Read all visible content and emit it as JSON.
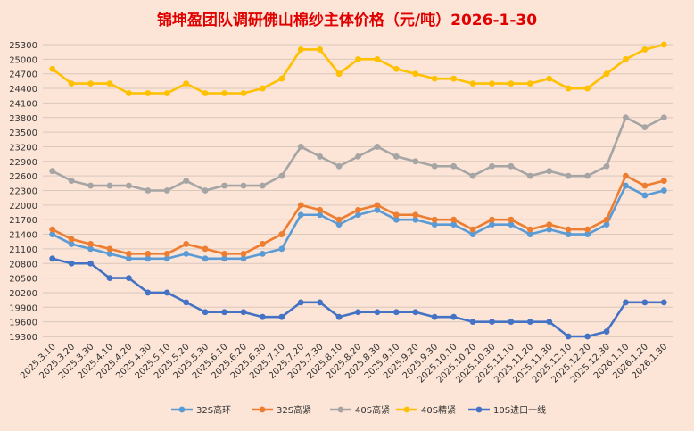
{
  "chart_data": {
    "type": "line",
    "title": "锦坤盈团队调研佛山棉纱主体价格（元/吨）2026-1-30",
    "xlabel": "",
    "ylabel": "",
    "ylim": [
      19300,
      25300
    ],
    "yticks": [
      19300,
      19600,
      19900,
      20200,
      20500,
      20800,
      21100,
      21400,
      21700,
      22000,
      22300,
      22600,
      22900,
      23200,
      23500,
      23800,
      24100,
      24400,
      24700,
      25000,
      25300
    ],
    "grid": true,
    "legend": "bottom",
    "categories": [
      "2025.3.10",
      "2025.3.20",
      "2025.3.30",
      "2025.4.10",
      "2025.4.20",
      "2025.4.30",
      "2025.5.10",
      "2025.5.20",
      "2025.5.30",
      "2025.6.10",
      "2025.6.20",
      "2025.6.30",
      "2025.7.10",
      "2025.7.20",
      "2025.7.30",
      "2025.8.10",
      "2025.8.20",
      "2025.8.30",
      "2025.9.10",
      "2025.9.20",
      "2025.9.30",
      "2025.10.10",
      "2025.10.20",
      "2025.10.30",
      "2025.11.10",
      "2025.11.20",
      "2025.11.30",
      "2025.12.10",
      "2025.12.20",
      "2025.12.30",
      "2026.1.10",
      "2026.1.20",
      "2026.1.30"
    ],
    "series": [
      {
        "name": "32S高环",
        "color": "#5b9bd5",
        "values": [
          21400,
          21200,
          21100,
          21000,
          20900,
          20900,
          20900,
          21000,
          20900,
          20900,
          20900,
          21000,
          21100,
          21800,
          21800,
          21600,
          21800,
          21900,
          21700,
          21700,
          21600,
          21600,
          21400,
          21600,
          21600,
          21400,
          21500,
          21400,
          21400,
          21600,
          22400,
          22200,
          22300
        ]
      },
      {
        "name": "32S高紧",
        "color": "#ed7d31",
        "values": [
          21500,
          21300,
          21200,
          21100,
          21000,
          21000,
          21000,
          21200,
          21100,
          21000,
          21000,
          21200,
          21400,
          22000,
          21900,
          21700,
          21900,
          22000,
          21800,
          21800,
          21700,
          21700,
          21500,
          21700,
          21700,
          21500,
          21600,
          21500,
          21500,
          21700,
          22600,
          22400,
          22500
        ]
      },
      {
        "name": "40S高紧",
        "color": "#a5a5a5",
        "values": [
          22700,
          22500,
          22400,
          22400,
          22400,
          22300,
          22300,
          22500,
          22300,
          22400,
          22400,
          22400,
          22600,
          23200,
          23000,
          22800,
          23000,
          23200,
          23000,
          22900,
          22800,
          22800,
          22600,
          22800,
          22800,
          22600,
          22700,
          22600,
          22600,
          22800,
          23800,
          23600,
          23800
        ]
      },
      {
        "name": "40S精紧",
        "color": "#ffc000",
        "values": [
          24800,
          24500,
          24500,
          24500,
          24300,
          24300,
          24300,
          24500,
          24300,
          24300,
          24300,
          24400,
          24600,
          25200,
          25200,
          24700,
          25000,
          25000,
          24800,
          24700,
          24600,
          24600,
          24500,
          24500,
          24500,
          24500,
          24600,
          24400,
          24400,
          24700,
          25000,
          25200,
          25300
        ]
      },
      {
        "name": "10S进口一线",
        "color": "#4472c4",
        "values": [
          20900,
          20800,
          20800,
          20500,
          20500,
          20200,
          20200,
          20000,
          19800,
          19800,
          19800,
          19700,
          19700,
          20000,
          20000,
          19700,
          19800,
          19800,
          19800,
          19800,
          19700,
          19700,
          19600,
          19600,
          19600,
          19600,
          19600,
          19300,
          19300,
          19400,
          20000,
          20000,
          20000
        ]
      }
    ]
  }
}
